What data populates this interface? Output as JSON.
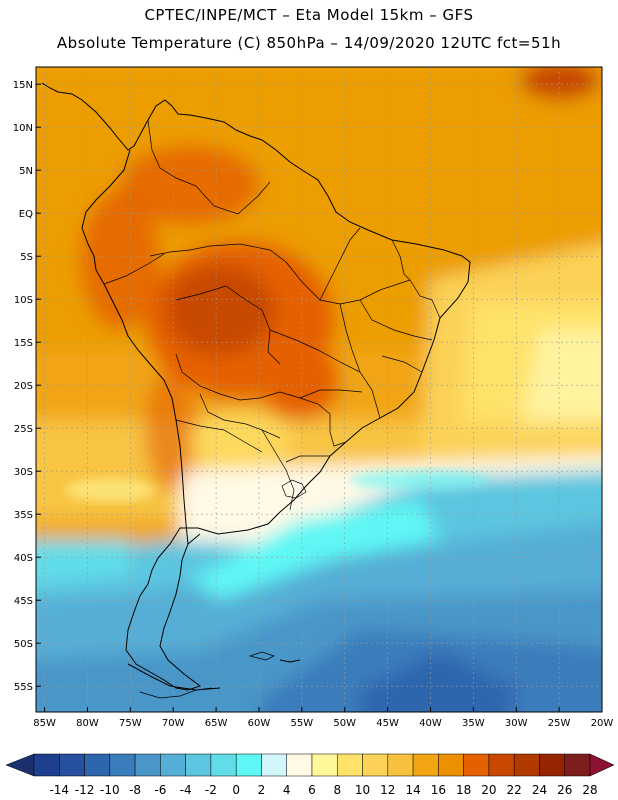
{
  "header": {
    "line1": "CPTEC/INPE/MCT –  Eta Model 15km – GFS",
    "line2": "Absolute Temperature (C) 850hPa – 14/09/2020 12UTC fct=51h"
  },
  "map": {
    "lat_labels": [
      "15N",
      "10N",
      "5N",
      "EQ",
      "5S",
      "10S",
      "15S",
      "20S",
      "25S",
      "30S",
      "35S",
      "40S",
      "45S",
      "50S",
      "55S"
    ],
    "lat_values": [
      15,
      10,
      5,
      0,
      -5,
      -10,
      -15,
      -20,
      -25,
      -30,
      -35,
      -40,
      -45,
      -50,
      -55
    ],
    "lon_labels": [
      "85W",
      "80W",
      "75W",
      "70W",
      "65W",
      "60W",
      "55W",
      "50W",
      "45W",
      "40W",
      "35W",
      "30W",
      "25W",
      "20W"
    ],
    "lon_values": [
      -85,
      -80,
      -75,
      -70,
      -65,
      -60,
      -55,
      -50,
      -45,
      -40,
      -35,
      -30,
      -25,
      -20
    ],
    "lat_range": [
      -58,
      17
    ],
    "lon_range": [
      -86,
      -20
    ],
    "features": [
      "south-america-coastline",
      "country-borders",
      "brazil-state-borders"
    ]
  },
  "colorbar": {
    "labels": [
      "-14",
      "-12",
      "-10",
      "-8",
      "-6",
      "-4",
      "-2",
      "0",
      "2",
      "4",
      "6",
      "8",
      "10",
      "12",
      "14",
      "16",
      "18",
      "20",
      "22",
      "24",
      "26",
      "28"
    ],
    "colors": [
      "#1f3f8f",
      "#27519f",
      "#2e66ad",
      "#3a7dbb",
      "#4a96c9",
      "#56aed6",
      "#5cc6e0",
      "#60dde9",
      "#5ff7f5",
      "#d2f6fa",
      "#fff9e6",
      "#fff799",
      "#ffe26a",
      "#fbd157",
      "#f6c13c",
      "#f1a512",
      "#ec8f00",
      "#e56000",
      "#c84800",
      "#b13a00",
      "#962400",
      "#7d1d1d"
    ],
    "under_color": "#1c2f6e",
    "over_color": "#8b1230"
  }
}
